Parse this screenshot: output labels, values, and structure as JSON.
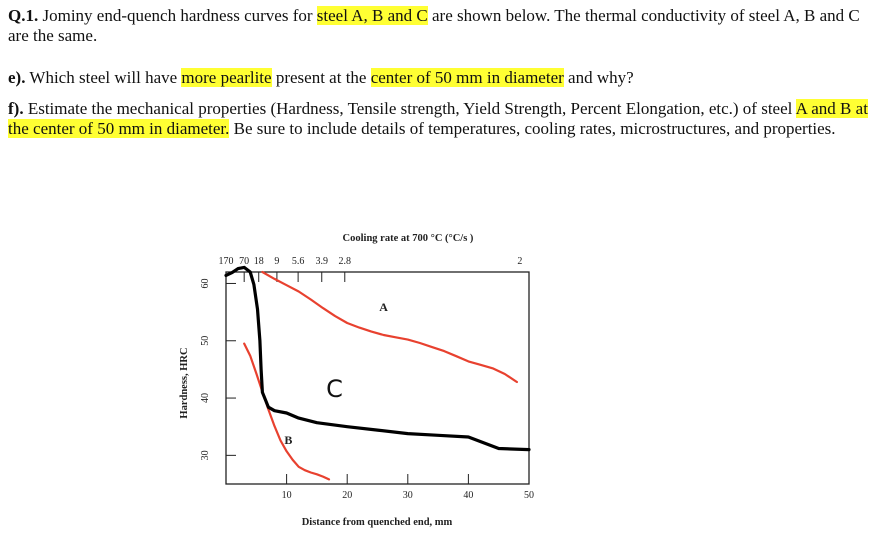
{
  "question": {
    "number": "Q.1.",
    "text_1": " Jominy end-quench hardness curves for ",
    "hl_1": "steel A, B and C",
    "text_2": " are shown below. The thermal conductivity of steel A, B and C are the same.",
    "e_label": "e).",
    "e_text_1": " Which steel will have ",
    "e_hl_1": "more pearlite",
    "e_text_2": " present at the ",
    "e_hl_2": "center of 50 mm in diameter",
    "e_text_3": " and why?",
    "f_label": "f).",
    "f_text_1": " Estimate the mechanical properties (Hardness, Tensile strength, Yield Strength, Percent Elongation, etc.) of steel ",
    "f_hl_1": "A and B at the center of 50 mm in diameter.",
    "f_text_2": " Be sure to include details of temperatures, cooling rates, microstructures, and properties."
  },
  "chart_data": {
    "type": "line",
    "title": "Cooling rate at 700 °C (°C/s )",
    "xlabel": "Distance from quenched end, mm",
    "ylabel": "Hardness, HRC",
    "xlim": [
      0,
      50
    ],
    "ylim": [
      25,
      62
    ],
    "x_ticks": [
      10,
      20,
      30,
      40,
      50
    ],
    "y_ticks": [
      30,
      40,
      50,
      60
    ],
    "top_axis": {
      "labels": [
        "170",
        "70",
        "18",
        "9",
        "5.6",
        "3.9",
        "2.8",
        "2"
      ],
      "positions_mm": [
        0,
        3,
        5.4,
        8.4,
        11.9,
        15.8,
        19.6,
        48.5
      ]
    },
    "series": [
      {
        "name": "A",
        "color": "#e8412f",
        "x": [
          6,
          8,
          10,
          12,
          14,
          16,
          18,
          20,
          22,
          24,
          26,
          28,
          30,
          32,
          34,
          36,
          38,
          40,
          42,
          44,
          46,
          48
        ],
        "y": [
          62,
          60.8,
          59.7,
          58.6,
          57.2,
          55.7,
          54.3,
          53.1,
          52.3,
          51.6,
          51.0,
          50.6,
          50.2,
          49.6,
          48.9,
          48.2,
          47.3,
          46.4,
          45.8,
          45.2,
          44.2,
          42.8
        ]
      },
      {
        "name": "B",
        "color": "#e8412f",
        "x": [
          3,
          4,
          5,
          6,
          7,
          8,
          9,
          10,
          11,
          12,
          13,
          14,
          15,
          16,
          17
        ],
        "y": [
          49.5,
          47.4,
          44.3,
          41.1,
          38.0,
          35.1,
          32.6,
          30.7,
          29.2,
          28.0,
          27.4,
          27.0,
          26.7,
          26.3,
          25.8
        ]
      },
      {
        "name": "C",
        "color": "#000000",
        "x": [
          0,
          1,
          2,
          3,
          4,
          4.6,
          5.2,
          5.6,
          5.8,
          6,
          7,
          8,
          10,
          12,
          15,
          20,
          25,
          30,
          35,
          40,
          45,
          50
        ],
        "y": [
          61.4,
          61.9,
          62.6,
          62.8,
          62.0,
          59.8,
          55.5,
          50.0,
          45.0,
          41.0,
          38.4,
          37.8,
          37.4,
          36.5,
          35.7,
          35.0,
          34.4,
          33.8,
          33.5,
          33.2,
          31.2,
          31.0
        ]
      }
    ],
    "annotations": [
      {
        "text": "A",
        "x": 26,
        "y": 55.2
      },
      {
        "text": "B",
        "x": 10.3,
        "y": 32.0
      },
      {
        "text": "C",
        "x": 17.9,
        "y": 40.2
      }
    ],
    "grid": false
  }
}
